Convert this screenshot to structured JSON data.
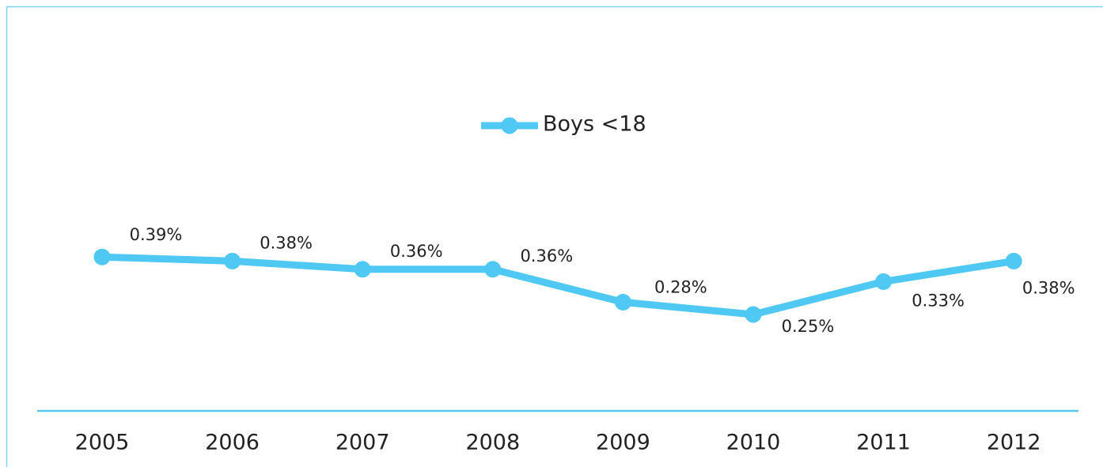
{
  "chart_data": {
    "type": "line",
    "categories": [
      "2005",
      "2006",
      "2007",
      "2008",
      "2009",
      "2010",
      "2011",
      "2012"
    ],
    "series": [
      {
        "name": "Boys <18",
        "color": "#4fc8f3",
        "values": [
          0.39,
          0.38,
          0.36,
          0.36,
          0.28,
          0.25,
          0.33,
          0.38
        ],
        "value_labels": [
          "0.39%",
          "0.38%",
          "0.36%",
          "0.36%",
          "0.28%",
          "0.25%",
          "0.33%",
          "0.38%"
        ]
      }
    ],
    "ylim": [
      0,
      1
    ]
  }
}
